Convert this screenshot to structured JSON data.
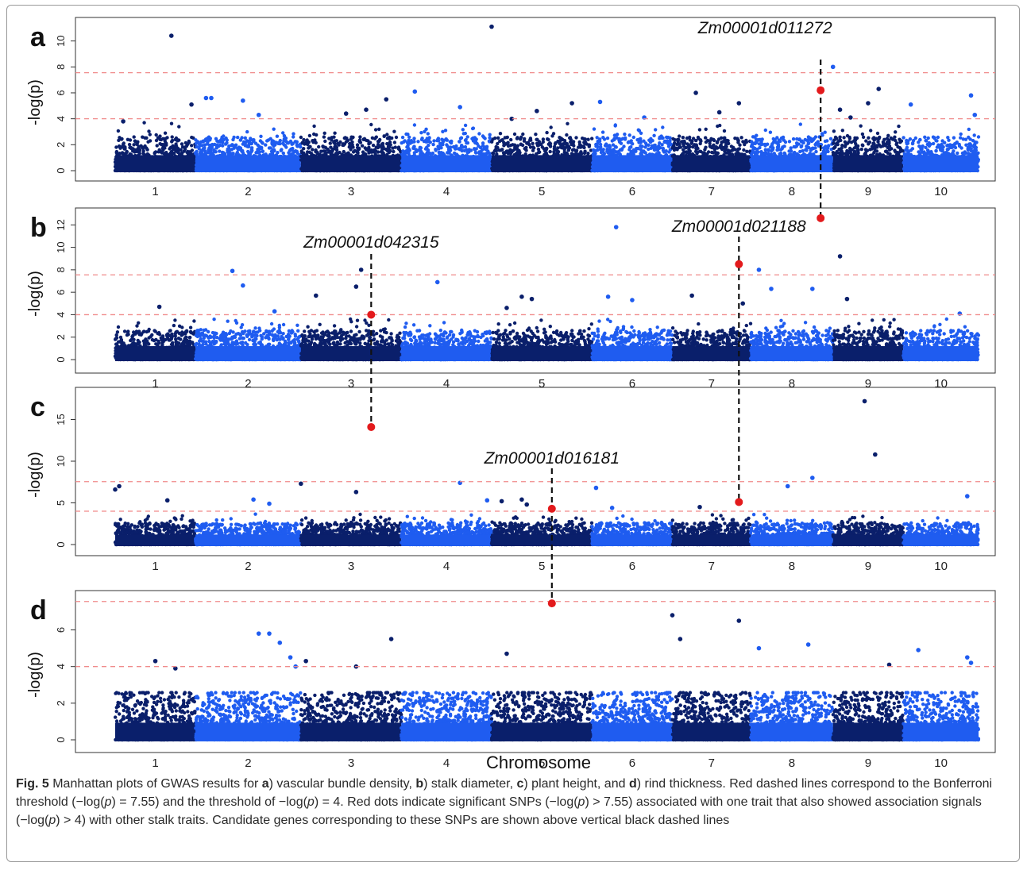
{
  "figure": {
    "x_axis_title": "Chromosome",
    "caption": {
      "fig_label": "Fig. 5",
      "s1": " Manhattan plots of GWAS results for ",
      "a": "a",
      "s2": ") vascular bundle density, ",
      "b": "b",
      "s3": ") stalk diameter, ",
      "c": "c",
      "s4": ") plant height, and ",
      "d": "d",
      "s5": ") rind thickness. Red dashed lines correspond to the Bonferroni threshold (−log(",
      "p1": "p",
      "s6": ") = 7.55) and the threshold of −log(",
      "p2": "p",
      "s7": ") = 4. Red dots indicate significant SNPs (−log(",
      "p3": "p",
      "s8": ") > 7.55) associated with one trait that also showed association signals (−log(",
      "p4": "p",
      "s9": ") > 4) with other stalk traits. Candidate genes corresponding to these SNPs are shown above vertical black dashed lines"
    }
  },
  "colors": {
    "dark_blue": "#0a1f6b",
    "light_blue": "#1f5cf0",
    "threshold_line": "#f08a8a",
    "highlight_dot": "#e31a1c",
    "connector_line": "#111111"
  },
  "chart_data": [
    {
      "panel": "a",
      "type": "scatter",
      "ylabel": "-log(p)",
      "categories": [
        "1",
        "2",
        "3",
        "4",
        "5",
        "6",
        "7",
        "8",
        "9",
        "10"
      ],
      "y_ticks": [
        0,
        2,
        4,
        6,
        8,
        10
      ],
      "ylim": [
        0,
        11.2
      ],
      "thresholds": [
        7.55,
        4
      ],
      "highlight": {
        "chromosome": 8,
        "position": 0.85,
        "value": 6.2,
        "gene": "Zm00001d011272"
      },
      "peaks": [
        [
          1,
          0.7,
          10.4
        ],
        [
          1,
          0.95,
          5.1
        ],
        [
          1,
          0.1,
          3.8
        ],
        [
          2,
          0.1,
          5.6
        ],
        [
          2,
          0.15,
          5.6
        ],
        [
          2,
          0.45,
          5.4
        ],
        [
          2,
          0.6,
          4.3
        ],
        [
          3,
          0.45,
          4.4
        ],
        [
          3,
          0.65,
          4.7
        ],
        [
          3,
          0.85,
          5.5
        ],
        [
          4,
          0.15,
          6.1
        ],
        [
          4,
          0.65,
          4.9
        ],
        [
          5,
          0.0,
          11.1
        ],
        [
          5,
          0.2,
          4.0
        ],
        [
          5,
          0.45,
          4.6
        ],
        [
          5,
          0.8,
          5.2
        ],
        [
          6,
          0.1,
          5.3
        ],
        [
          6,
          0.65,
          4.1
        ],
        [
          7,
          0.3,
          6.0
        ],
        [
          7,
          0.6,
          4.5
        ],
        [
          7,
          0.85,
          5.2
        ],
        [
          8,
          1.0,
          8.0
        ],
        [
          9,
          0.1,
          4.7
        ],
        [
          9,
          0.25,
          4.1
        ],
        [
          9,
          0.65,
          6.3
        ],
        [
          9,
          0.5,
          5.2
        ],
        [
          10,
          0.1,
          5.1
        ],
        [
          10,
          0.9,
          5.8
        ],
        [
          10,
          0.95,
          4.3
        ]
      ]
    },
    {
      "panel": "b",
      "type": "scatter",
      "ylabel": "-log(p)",
      "categories": [
        "1",
        "2",
        "3",
        "4",
        "5",
        "6",
        "7",
        "8",
        "9",
        "10"
      ],
      "y_ticks": [
        0,
        2,
        4,
        6,
        8,
        10,
        12
      ],
      "ylim": [
        0,
        12.8
      ],
      "thresholds": [
        7.55,
        4
      ],
      "highlight": {
        "chromosome": 3,
        "position": 0.7,
        "value": 4.0,
        "gene": "Zm00001d042315"
      },
      "highlight2": {
        "chromosome": 7,
        "position": 0.85,
        "value": 8.5,
        "gene": "Zm00001d021188"
      },
      "top_marker": {
        "chromosome": 8,
        "position": 0.85,
        "value": 12.6
      },
      "peaks": [
        [
          1,
          0.55,
          4.7
        ],
        [
          2,
          0.35,
          7.9
        ],
        [
          2,
          0.45,
          6.6
        ],
        [
          2,
          0.75,
          4.3
        ],
        [
          3,
          0.15,
          5.7
        ],
        [
          3,
          0.6,
          8.0
        ],
        [
          3,
          0.55,
          6.5
        ],
        [
          4,
          0.4,
          6.9
        ],
        [
          5,
          0.3,
          5.6
        ],
        [
          5,
          0.4,
          5.4
        ],
        [
          5,
          0.15,
          4.6
        ],
        [
          6,
          0.3,
          11.8
        ],
        [
          6,
          0.2,
          5.6
        ],
        [
          6,
          0.5,
          5.3
        ],
        [
          7,
          0.25,
          5.7
        ],
        [
          7,
          0.9,
          5.0
        ],
        [
          8,
          0.1,
          8.0
        ],
        [
          8,
          0.25,
          6.3
        ],
        [
          8,
          0.75,
          6.3
        ],
        [
          9,
          0.1,
          9.2
        ],
        [
          9,
          0.2,
          5.4
        ],
        [
          10,
          0.75,
          4.1
        ]
      ]
    },
    {
      "panel": "c",
      "type": "scatter",
      "ylabel": "-log(p)",
      "categories": [
        "1",
        "2",
        "3",
        "4",
        "5",
        "6",
        "7",
        "8",
        "9",
        "10"
      ],
      "y_ticks": [
        0,
        5,
        10,
        15
      ],
      "ylim": [
        0,
        18
      ],
      "thresholds": [
        7.55,
        4
      ],
      "highlight": {
        "chromosome": 5,
        "position": 0.6,
        "value": 4.3,
        "gene": "Zm00001d016181"
      },
      "highlight2": {
        "chromosome": 7,
        "position": 0.85,
        "value": 5.1
      },
      "top_marker": {
        "chromosome": 3,
        "position": 0.7,
        "value": 14.1
      },
      "peaks": [
        [
          1,
          0.0,
          6.6
        ],
        [
          1,
          0.05,
          7.0
        ],
        [
          1,
          0.65,
          5.3
        ],
        [
          2,
          0.55,
          5.4
        ],
        [
          2,
          0.7,
          4.9
        ],
        [
          3,
          0.0,
          7.3
        ],
        [
          3,
          0.55,
          6.3
        ],
        [
          4,
          0.65,
          7.4
        ],
        [
          4,
          0.95,
          5.3
        ],
        [
          5,
          0.35,
          4.8
        ],
        [
          5,
          0.1,
          5.2
        ],
        [
          5,
          0.3,
          5.4
        ],
        [
          6,
          0.05,
          6.8
        ],
        [
          6,
          0.25,
          4.4
        ],
        [
          7,
          0.35,
          4.5
        ],
        [
          8,
          0.45,
          7.0
        ],
        [
          8,
          0.75,
          8.0
        ],
        [
          9,
          0.45,
          17.2
        ],
        [
          9,
          0.6,
          10.8
        ],
        [
          10,
          0.85,
          5.8
        ]
      ]
    },
    {
      "panel": "d",
      "type": "scatter",
      "ylabel": "-log(p)",
      "xlabel": "Chromosome",
      "categories": [
        "1",
        "2",
        "3",
        "4",
        "5",
        "6",
        "7",
        "8",
        "9",
        "10"
      ],
      "y_ticks": [
        0,
        2,
        4,
        6
      ],
      "ylim": [
        0,
        7.8
      ],
      "thresholds": [
        7.55,
        4
      ],
      "top_marker": {
        "chromosome": 5,
        "position": 0.6,
        "value": 7.45
      },
      "peaks": [
        [
          1,
          0.5,
          4.3
        ],
        [
          1,
          0.75,
          3.9
        ],
        [
          2,
          0.6,
          5.8
        ],
        [
          2,
          0.7,
          5.8
        ],
        [
          2,
          0.8,
          5.3
        ],
        [
          2,
          0.9,
          4.5
        ],
        [
          2,
          0.95,
          4.0
        ],
        [
          3,
          0.05,
          4.3
        ],
        [
          3,
          0.55,
          4.0
        ],
        [
          3,
          0.9,
          5.5
        ],
        [
          5,
          0.15,
          4.7
        ],
        [
          7,
          0.0,
          6.8
        ],
        [
          7,
          0.1,
          5.5
        ],
        [
          7,
          0.85,
          6.5
        ],
        [
          8,
          0.1,
          5.0
        ],
        [
          8,
          0.7,
          5.2
        ],
        [
          9,
          0.8,
          4.1
        ],
        [
          10,
          0.2,
          4.9
        ],
        [
          10,
          0.85,
          4.5
        ],
        [
          10,
          0.9,
          4.2
        ]
      ]
    }
  ],
  "panel_labels": [
    "a",
    "b",
    "c",
    "d"
  ],
  "gene_labels": {
    "g1": "Zm00001d011272",
    "g2": "Zm00001d042315",
    "g3": "Zm00001d021188",
    "g4": "Zm00001d016181"
  }
}
